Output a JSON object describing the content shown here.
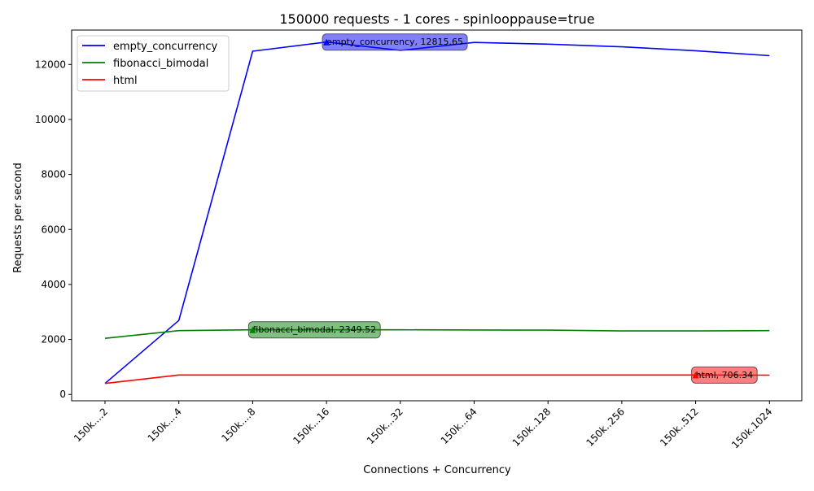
{
  "chart_data": {
    "type": "line",
    "title": "150000 requests - 1 cores - spinlooppause=true",
    "xlabel": "Connections + Concurrency",
    "ylabel": "Requests per second",
    "categories": [
      "150k....2",
      "150k....4",
      "150k....8",
      "150k...16",
      "150k...32",
      "150k...64",
      "150k..128",
      "150k..256",
      "150k..512",
      "150k.1024"
    ],
    "ylim": [
      -230,
      13250
    ],
    "yticks": [
      0,
      2000,
      4000,
      6000,
      8000,
      10000,
      12000
    ],
    "grid": false,
    "legend_position": "top-left",
    "series": [
      {
        "name": "empty_concurrency",
        "color": "#0000ff",
        "values": [
          400,
          2690,
          12480,
          12815.65,
          12510,
          12800,
          12740,
          12640,
          12500,
          12320
        ]
      },
      {
        "name": "fibonacci_bimodal",
        "color": "#008000",
        "values": [
          2040,
          2320,
          2349.52,
          2350,
          2350,
          2345,
          2340,
          2310,
          2310,
          2320
        ]
      },
      {
        "name": "html",
        "color": "#ff0000",
        "values": [
          400,
          706.34,
          706,
          706,
          706,
          706,
          706,
          706,
          706.34,
          700
        ]
      }
    ],
    "annotations": [
      {
        "series": 0,
        "index": 3,
        "text": "empty_concurrency, 12815.65"
      },
      {
        "series": 1,
        "index": 2,
        "text": "fibonacci_bimodal, 2349.52"
      },
      {
        "series": 2,
        "index": 8,
        "text": "html, 706.34"
      }
    ]
  }
}
